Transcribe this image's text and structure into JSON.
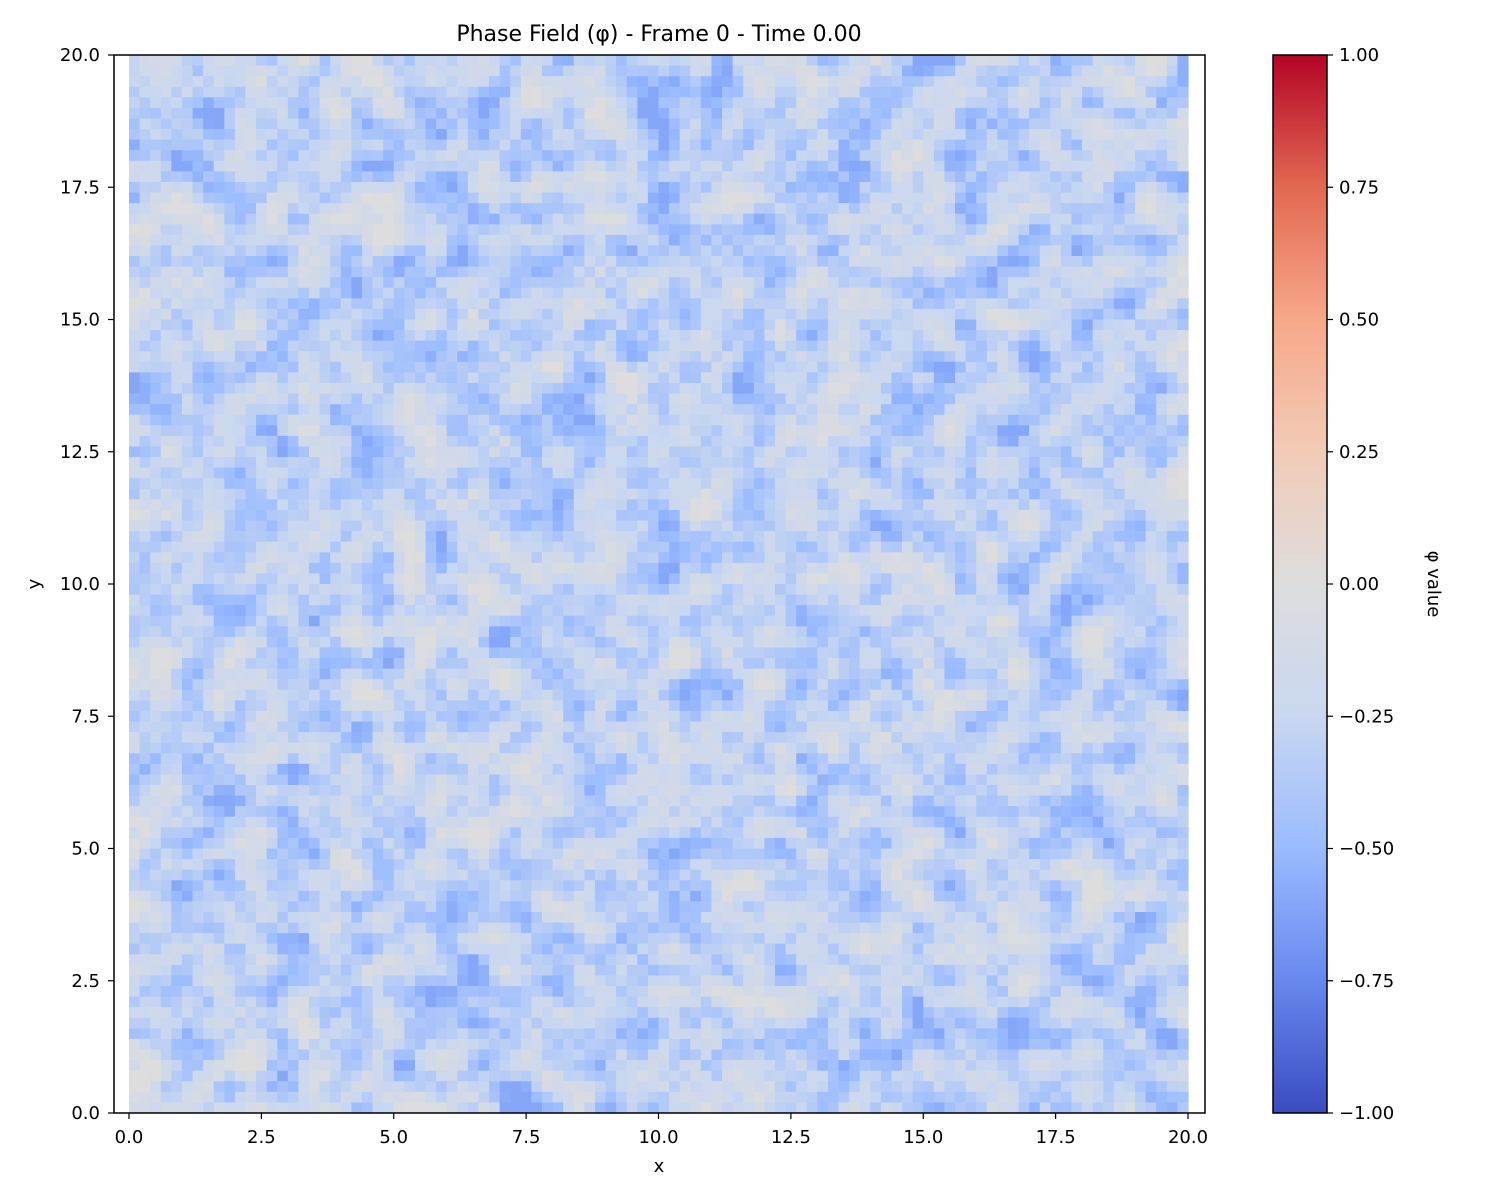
{
  "chart_data": {
    "type": "heatmap",
    "title": "Phase Field (φ) - Frame 0 - Time 0.00",
    "xlabel": "x",
    "ylabel": "y",
    "xlim": [
      0,
      20
    ],
    "ylim": [
      0,
      20
    ],
    "x_ticks": [
      "0.0",
      "2.5",
      "5.0",
      "7.5",
      "10.0",
      "12.5",
      "15.0",
      "17.5",
      "20.0"
    ],
    "y_ticks": [
      "0.0",
      "2.5",
      "5.0",
      "7.5",
      "10.0",
      "12.5",
      "15.0",
      "17.5",
      "20.0"
    ],
    "grid": false,
    "grid_cells": [
      100,
      100
    ],
    "field_range_observed": [
      -0.6,
      0.0
    ],
    "field_mean_observed": -0.3,
    "colormap": "coolwarm",
    "colormap_stops": [
      "#3b4cc0",
      "#6788ee",
      "#9abbff",
      "#c9d7f0",
      "#dddddd",
      "#f2cbb7",
      "#f7a889",
      "#e26952",
      "#b40426"
    ],
    "colorbar": {
      "label": "φ value",
      "min": -1.0,
      "max": 1.0,
      "ticks": [
        "1.00",
        "0.75",
        "0.50",
        "0.25",
        "0.00",
        "−0.25",
        "−0.50",
        "−0.75",
        "−1.00"
      ]
    }
  }
}
